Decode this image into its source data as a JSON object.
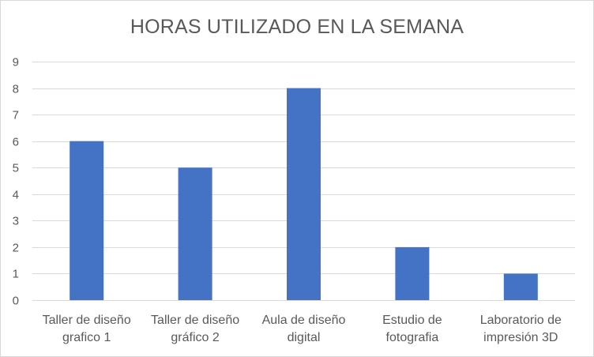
{
  "chart_data": {
    "type": "bar",
    "title": "HORAS UTILIZADO EN LA SEMANA",
    "xlabel": "",
    "ylabel": "",
    "categories": [
      [
        "Taller de diseño",
        "grafico 1"
      ],
      [
        "Taller de diseño",
        "gráfico 2"
      ],
      [
        "Aula de diseño",
        "digital"
      ],
      [
        "Estudio de",
        "fotografia"
      ],
      [
        "Laboratorio de",
        "impresión 3D"
      ]
    ],
    "values": [
      6,
      5,
      8,
      2,
      1
    ],
    "ylim": [
      0,
      9
    ],
    "yticks": [
      0,
      1,
      2,
      3,
      4,
      5,
      6,
      7,
      8,
      9
    ],
    "grid": true,
    "legend": "none",
    "bar_color": "#4472c4",
    "grid_color": "#d9d9d9",
    "text_color": "#595959"
  }
}
